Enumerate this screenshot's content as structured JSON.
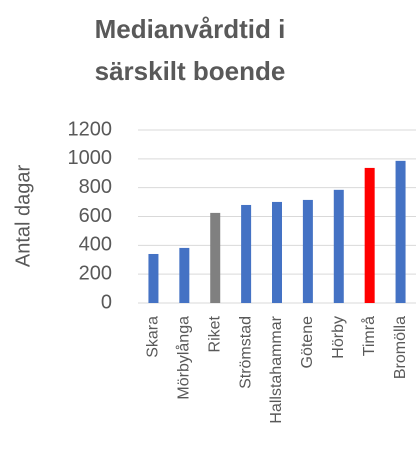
{
  "chart_data": {
    "type": "bar",
    "title": [
      "Medianvårdtid i",
      "särskilt boende"
    ],
    "y_label": "Antal dagar",
    "categories": [
      "Skara",
      "Mörbylånga",
      "Riket",
      "Strömstad",
      "Hallstahammar",
      "Götene",
      "Hörby",
      "Timrå",
      "Bromölla"
    ],
    "values": [
      340,
      382,
      625,
      680,
      701,
      715,
      785,
      937,
      986
    ],
    "colors": [
      "#4472c4",
      "#4472c4",
      "#808080",
      "#4472c4",
      "#4472c4",
      "#4472c4",
      "#4472c4",
      "#ff0000",
      "#4472c4"
    ],
    "ylim": [
      0,
      1200
    ],
    "yticks": [
      0,
      200,
      400,
      600,
      800,
      1000,
      1200
    ],
    "grid": true
  }
}
